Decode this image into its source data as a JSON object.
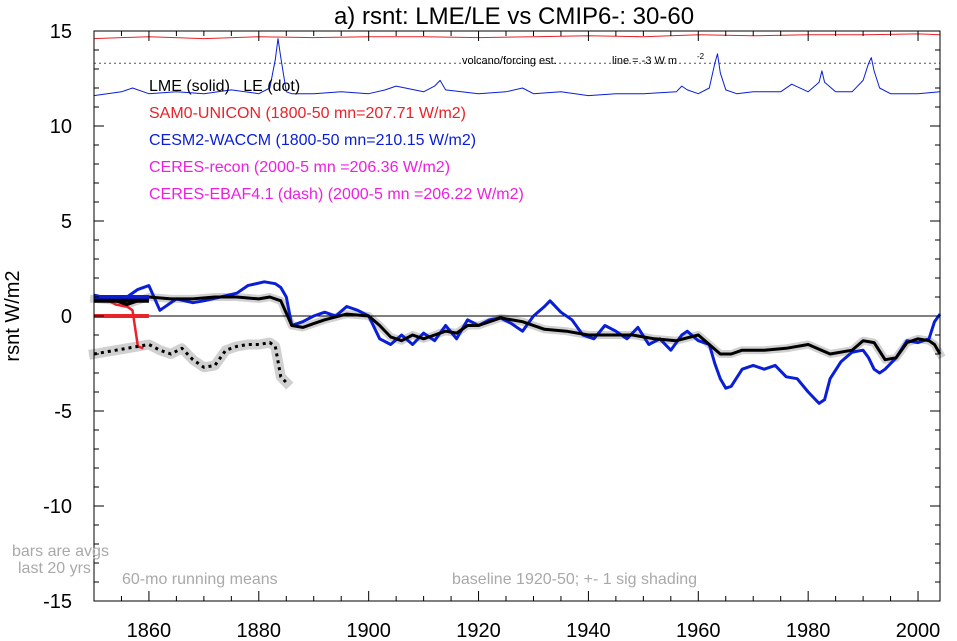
{
  "chart_data": {
    "type": "line",
    "title": "a) rsnt: LME/LE vs CMIP6-: 30-60",
    "ylabel": "rsnt W/m2",
    "xlabel": "",
    "xlim": [
      1850,
      2004
    ],
    "ylim": [
      -15,
      15
    ],
    "x_ticks": [
      1860,
      1880,
      1900,
      1920,
      1940,
      1960,
      1980,
      2000
    ],
    "y_ticks": [
      -15,
      -10,
      -5,
      0,
      5,
      10,
      15
    ],
    "legend": {
      "header": "LME (solid)   LE (dot)",
      "entries": [
        {
          "text": "SAM0-UNICON (1800-50 mn=207.71 W/m2)",
          "color": "#e8232a"
        },
        {
          "text": "CESM2-WACCM (1800-50 mn=210.15 W/m2)",
          "color": "#0a1ed7"
        },
        {
          "text": "CERES-recon (2000-5 mn =206.36 W/m2)",
          "color": "#ee1fe0"
        },
        {
          "text": "CERES-EBAF4.1 (dash) (2000-5 mn =206.22 W/m2)",
          "color": "#ee1fe0"
        }
      ]
    },
    "annotations": {
      "volcano": "volcano/forcing est.",
      "line_note": "line = -3 W m",
      "line_note_sup": "-2",
      "bars_note_1": "bars are avgs",
      "bars_note_2": "last 20 yrs",
      "running": "60-mo running means",
      "baseline": "baseline 1920-50; +- 1 sig shading"
    },
    "reference_lines": {
      "zero": 0,
      "volcano_baseline": 13.3
    },
    "series": [
      {
        "name": "SAM0-UNICON",
        "color": "#e8232a",
        "x": [
          1850,
          1851,
          1852,
          1853,
          1854,
          1855,
          1856,
          1857,
          1858,
          1859
        ],
        "values": [
          0.9,
          0.9,
          0.8,
          0.75,
          0.6,
          0.55,
          0.5,
          0.3,
          -1.6,
          -1.7
        ]
      },
      {
        "name": "CESM2-WACCM",
        "color": "#0a1ed7",
        "x": [
          1850,
          1853,
          1856,
          1858,
          1860,
          1862,
          1865,
          1868,
          1870,
          1873,
          1876,
          1878,
          1881,
          1883,
          1884,
          1885,
          1886,
          1888,
          1890,
          1892,
          1894,
          1896,
          1898,
          1900,
          1902,
          1904,
          1906,
          1908,
          1910,
          1912,
          1914,
          1916,
          1918,
          1920,
          1922,
          1924,
          1926,
          1928,
          1930,
          1932,
          1933,
          1935,
          1937,
          1939,
          1941,
          1943,
          1945,
          1947,
          1949,
          1951,
          1953,
          1955,
          1957,
          1958,
          1960,
          1962,
          1963,
          1964,
          1965,
          1966,
          1968,
          1970,
          1972,
          1974,
          1976,
          1978,
          1980,
          1982,
          1983,
          1984,
          1986,
          1988,
          1990,
          1991,
          1992,
          1993,
          1994,
          1996,
          1998,
          2000,
          2002,
          2003,
          2004
        ],
        "values": [
          1.1,
          0.9,
          1.0,
          1.4,
          1.6,
          0.3,
          0.9,
          0.7,
          0.8,
          1.0,
          1.2,
          1.6,
          1.8,
          1.7,
          1.5,
          1.0,
          -0.5,
          -0.3,
          0.0,
          0.2,
          0.0,
          0.5,
          0.3,
          0.0,
          -1.2,
          -1.5,
          -1.0,
          -1.5,
          -0.9,
          -1.3,
          -0.5,
          -1.2,
          -0.2,
          -0.5,
          -0.2,
          -0.1,
          -0.4,
          -0.8,
          0.0,
          0.5,
          0.8,
          0.2,
          -0.2,
          -1.0,
          -1.2,
          -0.5,
          -0.8,
          -1.2,
          -0.6,
          -1.5,
          -1.2,
          -1.8,
          -1.0,
          -0.8,
          -1.3,
          -1.5,
          -2.5,
          -3.3,
          -3.8,
          -3.7,
          -2.8,
          -2.6,
          -2.8,
          -2.6,
          -3.2,
          -3.3,
          -4.0,
          -4.6,
          -4.4,
          -3.3,
          -2.4,
          -1.9,
          -1.8,
          -2.2,
          -2.8,
          -3.0,
          -2.8,
          -2.2,
          -1.3,
          -1.4,
          -1.2,
          -0.3,
          0.1
        ]
      },
      {
        "name": "LME ensemble mean",
        "color": "#000000",
        "x": [
          1850,
          1854,
          1856,
          1860,
          1864,
          1868,
          1872,
          1876,
          1880,
          1882,
          1884,
          1886,
          1888,
          1890,
          1892,
          1896,
          1900,
          1902,
          1904,
          1906,
          1908,
          1910,
          1912,
          1914,
          1916,
          1918,
          1920,
          1924,
          1928,
          1932,
          1936,
          1940,
          1944,
          1948,
          1952,
          1956,
          1960,
          1962,
          1964,
          1966,
          1968,
          1972,
          1976,
          1980,
          1984,
          1988,
          1990,
          1992,
          1994,
          1996,
          1998,
          2000,
          2002,
          2003,
          2004
        ],
        "values": [
          0.9,
          0.8,
          0.6,
          1.0,
          0.9,
          0.9,
          1.0,
          1.0,
          0.9,
          1.0,
          0.8,
          -0.5,
          -0.6,
          -0.4,
          -0.2,
          0.1,
          0.0,
          -0.5,
          -1.1,
          -1.3,
          -1.0,
          -1.2,
          -1.0,
          -0.8,
          -0.9,
          -0.5,
          -0.5,
          -0.1,
          -0.3,
          -0.7,
          -0.8,
          -1.0,
          -1.0,
          -1.0,
          -1.2,
          -1.3,
          -1.0,
          -1.5,
          -2.0,
          -2.0,
          -1.8,
          -1.8,
          -1.7,
          -1.5,
          -2.0,
          -1.8,
          -1.3,
          -1.4,
          -2.3,
          -2.2,
          -1.4,
          -1.2,
          -1.3,
          -1.5,
          -2.0
        ]
      },
      {
        "name": "LE ensemble mean (dot)",
        "color": "#000000",
        "dashed": true,
        "x": [
          1850,
          1852,
          1854,
          1856,
          1858,
          1860,
          1862,
          1864,
          1866,
          1868,
          1870,
          1872,
          1874,
          1876,
          1878,
          1880,
          1882,
          1883,
          1884,
          1885
        ],
        "values": [
          -2.0,
          -1.9,
          -1.8,
          -1.7,
          -1.6,
          -1.5,
          -1.8,
          -2.0,
          -1.7,
          -2.3,
          -2.7,
          -2.6,
          -1.8,
          -1.6,
          -1.5,
          -1.5,
          -1.4,
          -1.6,
          -3.2,
          -3.5
        ]
      },
      {
        "name": "Volcano / forcing estimate",
        "color": "#0a1ed7",
        "x": [
          1850,
          1855,
          1857,
          1860,
          1865,
          1870,
          1875,
          1880,
          1882,
          1883,
          1883.5,
          1884,
          1885,
          1886,
          1890,
          1895,
          1900,
          1903,
          1905,
          1910,
          1912,
          1913,
          1914,
          1920,
          1925,
          1928,
          1930,
          1935,
          1940,
          1945,
          1950,
          1956,
          1957,
          1958,
          1960,
          1962,
          1963,
          1963.5,
          1964,
          1965,
          1967,
          1970,
          1975,
          1977,
          1980,
          1982,
          1982.5,
          1983,
          1985,
          1988,
          1990,
          1991,
          1991.5,
          1992,
          1993,
          1995,
          2000,
          2004
        ],
        "values": [
          11.6,
          11.8,
          12.0,
          11.7,
          11.8,
          11.7,
          11.9,
          11.7,
          12.0,
          13.5,
          14.6,
          13.6,
          11.8,
          11.7,
          11.7,
          11.8,
          11.7,
          11.9,
          12.1,
          11.8,
          12.1,
          12.4,
          11.9,
          11.7,
          11.8,
          12.0,
          11.7,
          11.8,
          11.6,
          11.7,
          11.7,
          11.8,
          12.1,
          11.9,
          11.7,
          12.0,
          13.3,
          13.8,
          12.8,
          11.9,
          11.7,
          11.8,
          11.8,
          12.2,
          11.8,
          12.3,
          12.9,
          12.3,
          11.8,
          11.8,
          12.4,
          13.3,
          13.6,
          12.9,
          12.0,
          11.7,
          11.7,
          11.8
        ]
      },
      {
        "name": "Top reference",
        "color": "#e8232a",
        "x": [
          1850,
          1860,
          1870,
          1880,
          1890,
          1900,
          1910,
          1920,
          1930,
          1940,
          1950,
          1960,
          1970,
          1980,
          1990,
          2000,
          2004
        ],
        "values": [
          14.6,
          14.7,
          14.6,
          14.7,
          14.65,
          14.7,
          14.7,
          14.65,
          14.7,
          14.75,
          14.7,
          14.8,
          14.75,
          14.8,
          14.8,
          14.85,
          14.8
        ]
      }
    ],
    "bars": [
      {
        "series": "CESM2-WACCM",
        "x0": 1850,
        "x1": 1860,
        "value": 1.0,
        "color": "#0a1ed7"
      },
      {
        "series": "LME",
        "x0": 1850,
        "x1": 1860,
        "value": 0.8,
        "color": "#000000"
      },
      {
        "series": "SAM0-UNICON",
        "x0": 1850,
        "x1": 1860,
        "value": 0.0,
        "color": "#e8232a"
      }
    ]
  }
}
